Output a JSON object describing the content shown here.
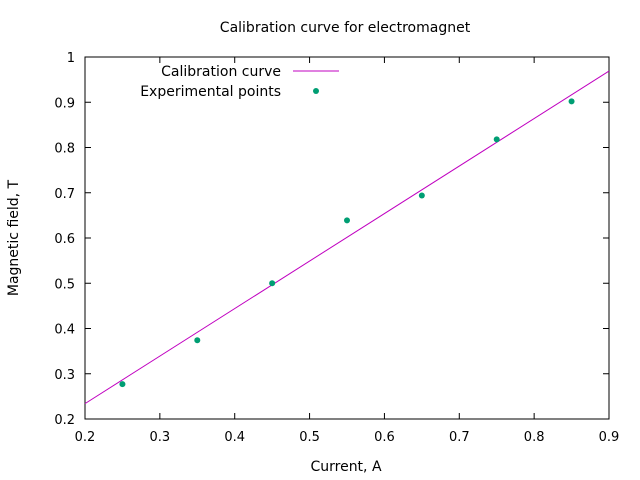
{
  "chart_data": {
    "type": "scatter",
    "title": "Calibration curve for electromagnet",
    "xlabel": "Current, A",
    "ylabel": "Magnetic field, T",
    "xlim": [
      0.2,
      0.9
    ],
    "ylim": [
      0.2,
      1.0
    ],
    "x_ticks": [
      "0.2",
      "0.3",
      "0.4",
      "0.5",
      "0.6",
      "0.7",
      "0.8",
      "0.9"
    ],
    "y_ticks": [
      "0.2",
      "0.3",
      "0.4",
      "0.5",
      "0.6",
      "0.7",
      "0.8",
      "0.9",
      "1"
    ],
    "grid": false,
    "legend_position": "top-left",
    "series": [
      {
        "name": "Calibration curve",
        "kind": "line",
        "color": "#c000c0",
        "points": [
          [
            0.2,
            0.234
          ],
          [
            0.9,
            0.969
          ]
        ]
      },
      {
        "name": "Experimental points",
        "kind": "points",
        "color": "#009e73",
        "points": [
          [
            0.25,
            0.277
          ],
          [
            0.35,
            0.374
          ],
          [
            0.45,
            0.5
          ],
          [
            0.55,
            0.639
          ],
          [
            0.65,
            0.694
          ],
          [
            0.75,
            0.818
          ],
          [
            0.85,
            0.902
          ]
        ]
      }
    ]
  }
}
